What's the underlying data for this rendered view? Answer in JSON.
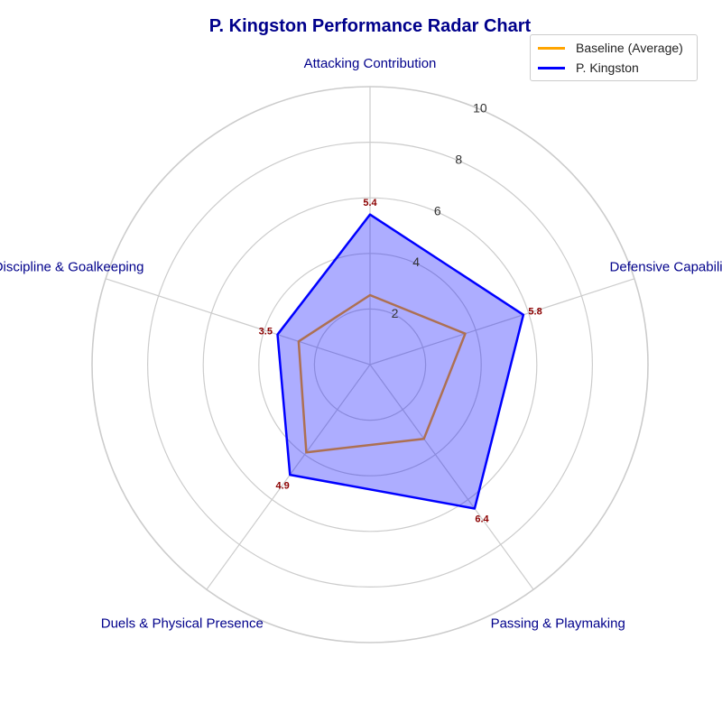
{
  "chart_data": {
    "type": "radar",
    "title": "P. Kingston Performance Radar Chart",
    "categories": [
      "Attacking Contribution",
      "Defensive Capability",
      "Passing & Playmaking",
      "Duels & Physical Presence",
      "Discipline & Goalkeeping"
    ],
    "series": [
      {
        "name": "Baseline (Average)",
        "values": [
          2.5,
          3.6,
          3.3,
          3.9,
          2.7
        ],
        "color": "#ffa500",
        "fill": false
      },
      {
        "name": "P. Kingston",
        "values": [
          5.4,
          5.8,
          6.4,
          4.9,
          3.5
        ],
        "color": "#0000ff",
        "fill": true,
        "fill_color": "#0000ff",
        "fill_opacity": 0.32
      }
    ],
    "data_labels": [
      "5.4",
      "5.8",
      "6.4",
      "4.9",
      "3.5"
    ],
    "data_label_color": "#8b0000",
    "radial_ticks": [
      "2",
      "4",
      "6",
      "8",
      "10"
    ],
    "rlim": [
      0,
      10
    ],
    "grid": true,
    "legend_position": "top-right",
    "category_label_color": "#00008b"
  }
}
